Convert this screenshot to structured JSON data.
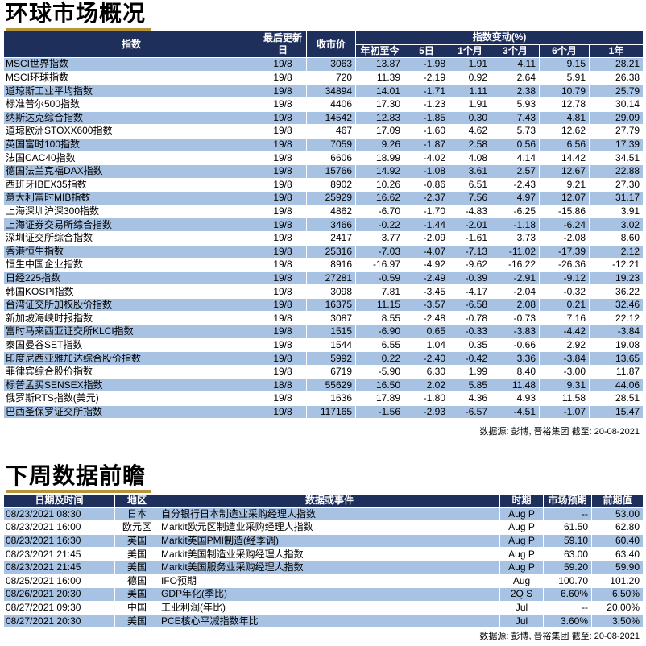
{
  "section1": {
    "title": "环球市场概况",
    "headers": {
      "index": "指数",
      "last_update": "最后更新日",
      "close": "收市价",
      "change_group": "指数变动(%)",
      "ytd": "年初至今",
      "d5": "5日",
      "m1": "1个月",
      "m3": "3个月",
      "m6": "6个月",
      "y1": "1年"
    },
    "rows": [
      [
        "MSCI世界指数",
        "19/8",
        "3063",
        "13.87",
        "-1.98",
        "1.91",
        "4.11",
        "9.15",
        "28.21"
      ],
      [
        "MSCI环球指数",
        "19/8",
        "720",
        "11.39",
        "-2.19",
        "0.92",
        "2.64",
        "5.91",
        "26.38"
      ],
      [
        "道琼斯工业平均指数",
        "19/8",
        "34894",
        "14.01",
        "-1.71",
        "1.11",
        "2.38",
        "10.79",
        "25.79"
      ],
      [
        "标准普尔500指数",
        "19/8",
        "4406",
        "17.30",
        "-1.23",
        "1.91",
        "5.93",
        "12.78",
        "30.14"
      ],
      [
        "纳斯达克综合指数",
        "19/8",
        "14542",
        "12.83",
        "-1.85",
        "0.30",
        "7.43",
        "4.81",
        "29.09"
      ],
      [
        "道琼欧洲STOXX600指数",
        "19/8",
        "467",
        "17.09",
        "-1.60",
        "4.62",
        "5.73",
        "12.62",
        "27.79"
      ],
      [
        "英国富时100指数",
        "19/8",
        "7059",
        "9.26",
        "-1.87",
        "2.58",
        "0.56",
        "6.56",
        "17.39"
      ],
      [
        "法国CAC40指数",
        "19/8",
        "6606",
        "18.99",
        "-4.02",
        "4.08",
        "4.14",
        "14.42",
        "34.51"
      ],
      [
        "德国法兰克福DAX指数",
        "19/8",
        "15766",
        "14.92",
        "-1.08",
        "3.61",
        "2.57",
        "12.67",
        "22.88"
      ],
      [
        "西班牙IBEX35指数",
        "19/8",
        "8902",
        "10.26",
        "-0.86",
        "6.51",
        "-2.43",
        "9.21",
        "27.30"
      ],
      [
        "意大利富时MIB指数",
        "19/8",
        "25929",
        "16.62",
        "-2.37",
        "7.56",
        "4.97",
        "12.07",
        "31.17"
      ],
      [
        "上海深圳沪深300指数",
        "19/8",
        "4862",
        "-6.70",
        "-1.70",
        "-4.83",
        "-6.25",
        "-15.86",
        "3.91"
      ],
      [
        "上海证券交易所综合指数",
        "19/8",
        "3466",
        "-0.22",
        "-1.44",
        "-2.01",
        "-1.18",
        "-6.24",
        "3.02"
      ],
      [
        "深圳证交所综合指数",
        "19/8",
        "2417",
        "3.77",
        "-2.09",
        "-1.61",
        "3.73",
        "-2.08",
        "8.60"
      ],
      [
        "香港恒生指数",
        "19/8",
        "25316",
        "-7.03",
        "-4.07",
        "-7.13",
        "-11.02",
        "-17.39",
        "2.12"
      ],
      [
        "恒生中国企业指数",
        "19/8",
        "8916",
        "-16.97",
        "-4.92",
        "-9.62",
        "-16.22",
        "-26.36",
        "-12.21"
      ],
      [
        "日经225指数",
        "19/8",
        "27281",
        "-0.59",
        "-2.49",
        "-0.39",
        "-2.91",
        "-9.12",
        "19.23"
      ],
      [
        "韩国KOSPI指数",
        "19/8",
        "3098",
        "7.81",
        "-3.45",
        "-4.17",
        "-2.04",
        "-0.32",
        "36.22"
      ],
      [
        "台湾证交所加权股价指数",
        "19/8",
        "16375",
        "11.15",
        "-3.57",
        "-6.58",
        "2.08",
        "0.21",
        "32.46"
      ],
      [
        "新加坡海峡时报指数",
        "19/8",
        "3087",
        "8.55",
        "-2.48",
        "-0.78",
        "-0.73",
        "7.16",
        "22.12"
      ],
      [
        "富时马来西亚证交所KLCI指数",
        "19/8",
        "1515",
        "-6.90",
        "0.65",
        "-0.33",
        "-3.83",
        "-4.42",
        "-3.84"
      ],
      [
        "泰国曼谷SET指数",
        "19/8",
        "1544",
        "6.55",
        "1.04",
        "0.35",
        "-0.66",
        "2.92",
        "19.08"
      ],
      [
        "印度尼西亚雅加达综合股价指数",
        "19/8",
        "5992",
        "0.22",
        "-2.40",
        "-0.42",
        "3.36",
        "-3.84",
        "13.65"
      ],
      [
        "菲律宾综合股价指数",
        "19/8",
        "6719",
        "-5.90",
        "6.30",
        "1.99",
        "8.40",
        "-3.00",
        "11.87"
      ],
      [
        "标普孟买SENSEX指数",
        "18/8",
        "55629",
        "16.50",
        "2.02",
        "5.85",
        "11.48",
        "9.31",
        "44.06"
      ],
      [
        "俄罗斯RTS指数(美元)",
        "19/8",
        "1636",
        "17.89",
        "-1.80",
        "4.36",
        "4.93",
        "11.58",
        "28.51"
      ],
      [
        "巴西圣保罗证交所指数",
        "19/8",
        "117165",
        "-1.56",
        "-2.93",
        "-6.57",
        "-4.51",
        "-1.07",
        "15.47"
      ]
    ],
    "source": "数据源: 彭博, 晋裕集团 截至: 20-08-2021"
  },
  "section2": {
    "title": "下周数据前瞻",
    "headers": {
      "datetime": "日期及时间",
      "region": "地区",
      "event": "数据或事件",
      "period": "时期",
      "forecast": "市场预期",
      "previous": "前期值"
    },
    "rows": [
      [
        "08/23/2021 08:30",
        "日本",
        "自分银行日本制造业采购经理人指数",
        "Aug P",
        "--",
        "53.00"
      ],
      [
        "08/23/2021 16:00",
        "欧元区",
        "Markit欧元区制造业采购经理人指数",
        "Aug P",
        "61.50",
        "62.80"
      ],
      [
        "08/23/2021 16:30",
        "英国",
        "Markit英国PMI制造(经季调)",
        "Aug P",
        "59.10",
        "60.40"
      ],
      [
        "08/23/2021 21:45",
        "美国",
        "Markit美国制造业采购经理人指数",
        "Aug P",
        "63.00",
        "63.40"
      ],
      [
        "08/23/2021 21:45",
        "美国",
        "Markit美国服务业采购经理人指数",
        "Aug P",
        "59.20",
        "59.90"
      ],
      [
        "08/25/2021 16:00",
        "德国",
        "IFO预期",
        "Aug",
        "100.70",
        "101.20"
      ],
      [
        "08/26/2021 20:30",
        "美国",
        "GDP年化(季比)",
        "2Q S",
        "6.60%",
        "6.50%"
      ],
      [
        "08/27/2021 09:30",
        "中国",
        "工业利润(年比)",
        "Jul",
        "--",
        "20.00%"
      ],
      [
        "08/27/2021 20:30",
        "美国",
        "PCE核心平减指数年比",
        "Jul",
        "3.60%",
        "3.50%"
      ]
    ],
    "source": "数据源: 彭博, 晋裕集团 截至: 20-08-2021"
  }
}
